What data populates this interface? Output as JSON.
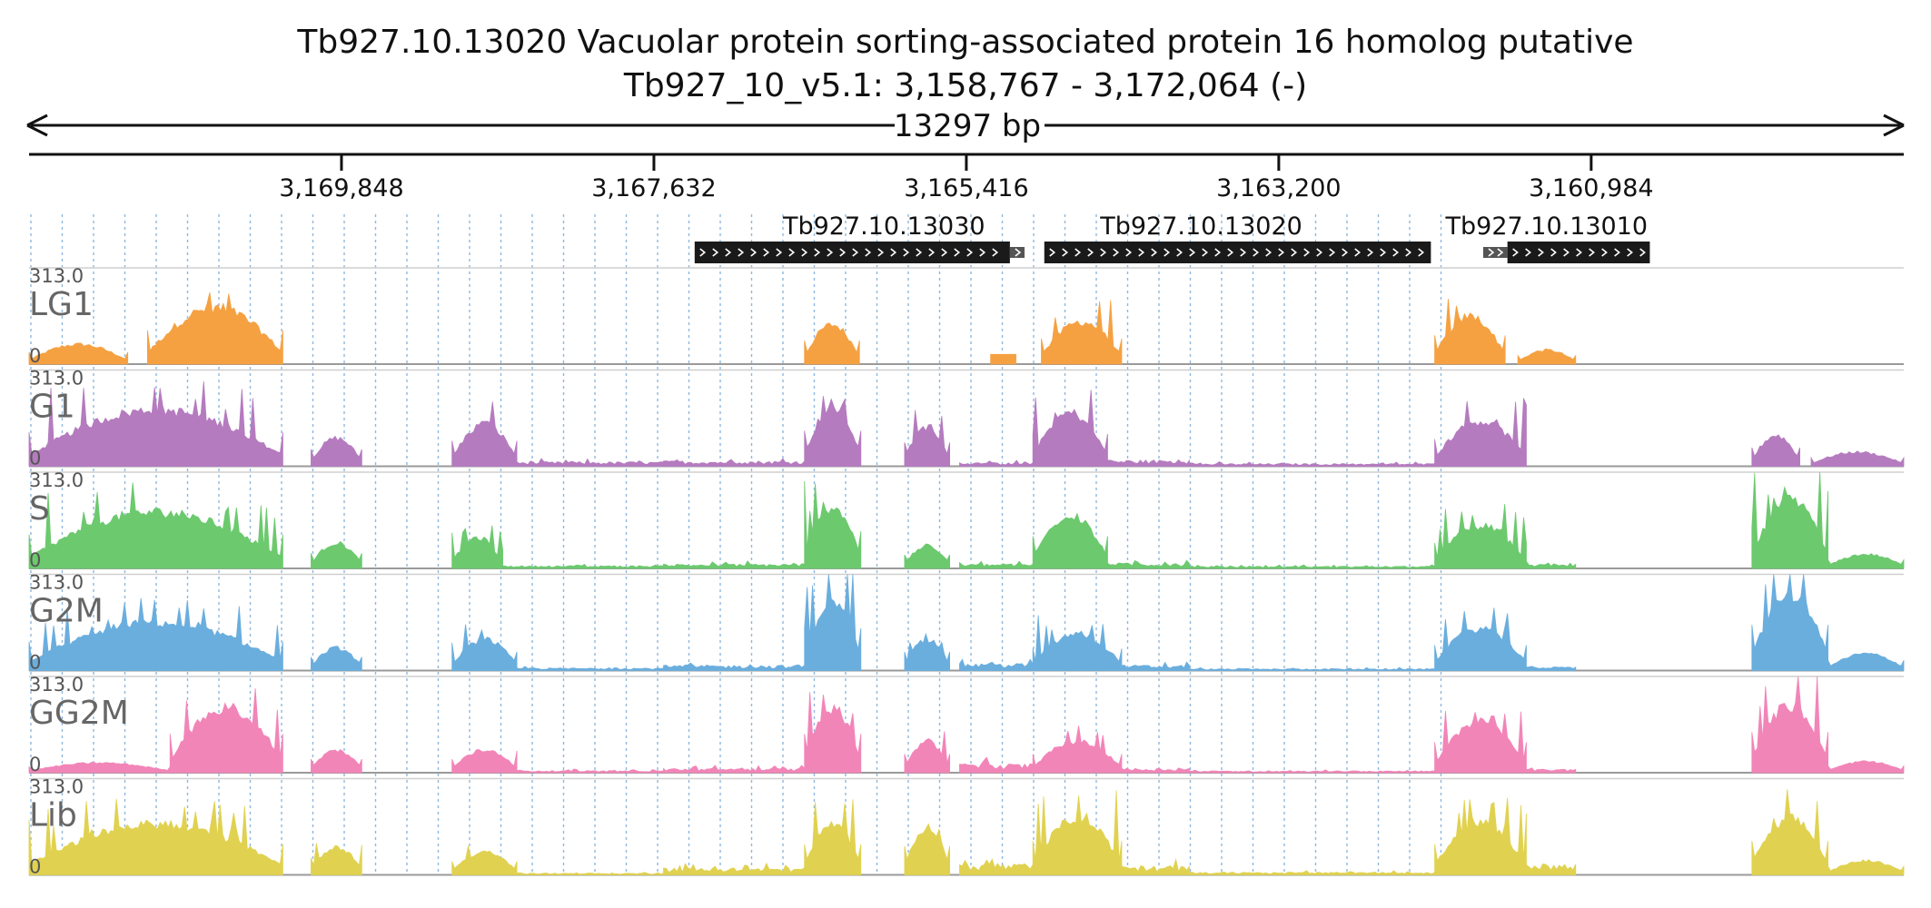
{
  "header": {
    "title": "Tb927.10.13020  Vacuolar protein sorting-associated protein 16 homolog  putative",
    "locus": "Tb927_10_v5.1: 3,158,767 - 3,172,064 (-)",
    "span_label": "13297 bp"
  },
  "chart_data": {
    "type": "area",
    "region": {
      "start": 3158767,
      "end": 3172064,
      "strand": "-"
    },
    "axis_ticks": [
      {
        "value": 3169848,
        "label": "3,169,848"
      },
      {
        "value": 3167632,
        "label": "3,167,632"
      },
      {
        "value": 3165416,
        "label": "3,165,416"
      },
      {
        "value": 3163200,
        "label": "3,163,200"
      },
      {
        "value": 3160984,
        "label": "3,160,984"
      }
    ],
    "genes": [
      {
        "name": "Tb927.10.13030",
        "label_pos": 3166000,
        "segments": [
          {
            "start": 3167343,
            "end": 3165107,
            "type": "exon"
          },
          {
            "start": 3165107,
            "end": 3165003,
            "type": "utr"
          }
        ]
      },
      {
        "name": "Tb927.10.13020",
        "label_pos": 3163750,
        "segments": [
          {
            "start": 3164863,
            "end": 3162121,
            "type": "exon"
          }
        ]
      },
      {
        "name": "Tb927.10.13010",
        "label_pos": 3161300,
        "segments": [
          {
            "start": 3161750,
            "end": 3161578,
            "type": "utr"
          },
          {
            "start": 3161578,
            "end": 3160568,
            "type": "exon"
          }
        ]
      }
    ],
    "y_max_label": "313.0",
    "y_min_label": "0",
    "ylim": [
      0,
      313
    ],
    "grid": "dotted-vertical",
    "tracks": [
      {
        "name": "LG1",
        "color": "#f5a142",
        "blocks": [
          {
            "start": 3172064,
            "end": 3171364,
            "peak": 70,
            "shape": "dome"
          },
          {
            "start": 3171224,
            "end": 3170264,
            "peak": 200,
            "shape": "dome_spiky"
          },
          {
            "start": 3166564,
            "end": 3166174,
            "peak": 140,
            "shape": "dome"
          },
          {
            "start": 3165244,
            "end": 3165064,
            "peak": 35,
            "shape": "flat"
          },
          {
            "start": 3164884,
            "end": 3164314,
            "peak": 150,
            "shape": "dome_spiky"
          },
          {
            "start": 3162094,
            "end": 3161594,
            "peak": 170,
            "shape": "dome_spiky"
          },
          {
            "start": 3161504,
            "end": 3161094,
            "peak": 50,
            "shape": "dome"
          }
        ]
      },
      {
        "name": "G1",
        "color": "#b57bbf",
        "blocks": [
          {
            "start": 3172064,
            "end": 3170264,
            "peak": 200,
            "shape": "dome_spiky"
          },
          {
            "start": 3170064,
            "end": 3169704,
            "peak": 100,
            "shape": "dome"
          },
          {
            "start": 3169064,
            "end": 3168604,
            "peak": 150,
            "shape": "dome_spiky"
          },
          {
            "start": 3168604,
            "end": 3167564,
            "peak": 25,
            "shape": "low"
          },
          {
            "start": 3167564,
            "end": 3166564,
            "peak": 30,
            "shape": "low"
          },
          {
            "start": 3166564,
            "end": 3166164,
            "peak": 210,
            "shape": "dome_spiky"
          },
          {
            "start": 3165854,
            "end": 3165534,
            "peak": 140,
            "shape": "dome_spiky"
          },
          {
            "start": 3165464,
            "end": 3164944,
            "peak": 20,
            "shape": "low"
          },
          {
            "start": 3164944,
            "end": 3164414,
            "peak": 190,
            "shape": "dome_spiky"
          },
          {
            "start": 3164414,
            "end": 3163834,
            "peak": 35,
            "shape": "low"
          },
          {
            "start": 3163834,
            "end": 3162094,
            "peak": 15,
            "shape": "low"
          },
          {
            "start": 3162094,
            "end": 3161444,
            "peak": 160,
            "shape": "dome_spiky"
          },
          {
            "start": 3159844,
            "end": 3159504,
            "peak": 110,
            "shape": "dome"
          },
          {
            "start": 3159424,
            "end": 3158767,
            "peak": 50,
            "shape": "dome"
          }
        ]
      },
      {
        "name": "S",
        "color": "#6cc96e",
        "blocks": [
          {
            "start": 3172064,
            "end": 3170264,
            "peak": 200,
            "shape": "dome_spiky"
          },
          {
            "start": 3170064,
            "end": 3169704,
            "peak": 90,
            "shape": "dome"
          },
          {
            "start": 3169064,
            "end": 3168704,
            "peak": 110,
            "shape": "dome_spiky"
          },
          {
            "start": 3168704,
            "end": 3167564,
            "peak": 15,
            "shape": "low"
          },
          {
            "start": 3167564,
            "end": 3166564,
            "peak": 25,
            "shape": "low"
          },
          {
            "start": 3166564,
            "end": 3166164,
            "peak": 220,
            "shape": "dome_spiky"
          },
          {
            "start": 3165854,
            "end": 3165534,
            "peak": 80,
            "shape": "dome"
          },
          {
            "start": 3165464,
            "end": 3164944,
            "peak": 25,
            "shape": "low"
          },
          {
            "start": 3164944,
            "end": 3164414,
            "peak": 190,
            "shape": "dome_spiky"
          },
          {
            "start": 3164414,
            "end": 3163834,
            "peak": 30,
            "shape": "low"
          },
          {
            "start": 3163834,
            "end": 3162094,
            "peak": 12,
            "shape": "low"
          },
          {
            "start": 3162094,
            "end": 3161444,
            "peak": 150,
            "shape": "dome_spiky"
          },
          {
            "start": 3161444,
            "end": 3161094,
            "peak": 25,
            "shape": "low"
          },
          {
            "start": 3159844,
            "end": 3159304,
            "peak": 240,
            "shape": "dome_spiky"
          },
          {
            "start": 3159304,
            "end": 3158767,
            "peak": 50,
            "shape": "dome"
          }
        ]
      },
      {
        "name": "G2M",
        "color": "#6aaede",
        "blocks": [
          {
            "start": 3172064,
            "end": 3170264,
            "peak": 170,
            "shape": "dome_spiky"
          },
          {
            "start": 3170064,
            "end": 3169704,
            "peak": 80,
            "shape": "dome"
          },
          {
            "start": 3169064,
            "end": 3168604,
            "peak": 110,
            "shape": "dome_spiky"
          },
          {
            "start": 3168604,
            "end": 3167564,
            "peak": 15,
            "shape": "low"
          },
          {
            "start": 3167564,
            "end": 3166564,
            "peak": 30,
            "shape": "low"
          },
          {
            "start": 3166564,
            "end": 3166164,
            "peak": 250,
            "shape": "dome_spiky"
          },
          {
            "start": 3165854,
            "end": 3165534,
            "peak": 110,
            "shape": "dome_spiky"
          },
          {
            "start": 3165464,
            "end": 3164944,
            "peak": 40,
            "shape": "low"
          },
          {
            "start": 3164944,
            "end": 3164314,
            "peak": 130,
            "shape": "dome_spiky"
          },
          {
            "start": 3164314,
            "end": 3163834,
            "peak": 30,
            "shape": "low"
          },
          {
            "start": 3163834,
            "end": 3162094,
            "peak": 10,
            "shape": "low"
          },
          {
            "start": 3162094,
            "end": 3161444,
            "peak": 150,
            "shape": "dome_spiky"
          },
          {
            "start": 3161444,
            "end": 3161094,
            "peak": 20,
            "shape": "low"
          },
          {
            "start": 3159844,
            "end": 3159304,
            "peak": 270,
            "shape": "dome_spiky"
          },
          {
            "start": 3159304,
            "end": 3158767,
            "peak": 60,
            "shape": "dome"
          }
        ]
      },
      {
        "name": "GG2M",
        "color": "#f285b8",
        "blocks": [
          {
            "start": 3172064,
            "end": 3171064,
            "peak": 35,
            "shape": "dome"
          },
          {
            "start": 3171064,
            "end": 3170264,
            "peak": 230,
            "shape": "dome_spiky"
          },
          {
            "start": 3170064,
            "end": 3169704,
            "peak": 80,
            "shape": "dome"
          },
          {
            "start": 3169064,
            "end": 3168604,
            "peak": 80,
            "shape": "dome_spiky"
          },
          {
            "start": 3168604,
            "end": 3167564,
            "peak": 12,
            "shape": "low"
          },
          {
            "start": 3167564,
            "end": 3166564,
            "peak": 25,
            "shape": "low"
          },
          {
            "start": 3166564,
            "end": 3166164,
            "peak": 230,
            "shape": "dome_spiky"
          },
          {
            "start": 3165854,
            "end": 3165534,
            "peak": 110,
            "shape": "dome_spiky"
          },
          {
            "start": 3165464,
            "end": 3164944,
            "peak": 50,
            "shape": "low"
          },
          {
            "start": 3164944,
            "end": 3164314,
            "peak": 110,
            "shape": "dome_spiky"
          },
          {
            "start": 3164314,
            "end": 3163834,
            "peak": 25,
            "shape": "low"
          },
          {
            "start": 3163834,
            "end": 3162094,
            "peak": 10,
            "shape": "low"
          },
          {
            "start": 3162094,
            "end": 3161444,
            "peak": 180,
            "shape": "dome_spiky"
          },
          {
            "start": 3161444,
            "end": 3161094,
            "peak": 20,
            "shape": "low"
          },
          {
            "start": 3159844,
            "end": 3159304,
            "peak": 240,
            "shape": "dome_spiky"
          },
          {
            "start": 3159304,
            "end": 3158767,
            "peak": 40,
            "shape": "dome"
          }
        ]
      },
      {
        "name": "Lib",
        "color": "#e0d250",
        "blocks": [
          {
            "start": 3172064,
            "end": 3170264,
            "peak": 180,
            "shape": "dome_spiky"
          },
          {
            "start": 3170064,
            "end": 3169704,
            "peak": 100,
            "shape": "dome_spiky"
          },
          {
            "start": 3169064,
            "end": 3168604,
            "peak": 80,
            "shape": "dome_spiky"
          },
          {
            "start": 3168604,
            "end": 3167564,
            "peak": 10,
            "shape": "low"
          },
          {
            "start": 3167564,
            "end": 3166564,
            "peak": 40,
            "shape": "low"
          },
          {
            "start": 3166564,
            "end": 3166164,
            "peak": 180,
            "shape": "dome_spiky"
          },
          {
            "start": 3165854,
            "end": 3165534,
            "peak": 170,
            "shape": "dome_spiky"
          },
          {
            "start": 3165464,
            "end": 3164944,
            "peak": 60,
            "shape": "low"
          },
          {
            "start": 3164944,
            "end": 3164314,
            "peak": 200,
            "shape": "dome_spiky"
          },
          {
            "start": 3164314,
            "end": 3163834,
            "peak": 50,
            "shape": "low"
          },
          {
            "start": 3163834,
            "end": 3162094,
            "peak": 15,
            "shape": "low"
          },
          {
            "start": 3162094,
            "end": 3161444,
            "peak": 180,
            "shape": "dome_spiky"
          },
          {
            "start": 3161444,
            "end": 3161094,
            "peak": 60,
            "shape": "low"
          },
          {
            "start": 3159844,
            "end": 3159304,
            "peak": 200,
            "shape": "dome_spiky"
          },
          {
            "start": 3159304,
            "end": 3158767,
            "peak": 50,
            "shape": "dome"
          }
        ]
      }
    ]
  }
}
